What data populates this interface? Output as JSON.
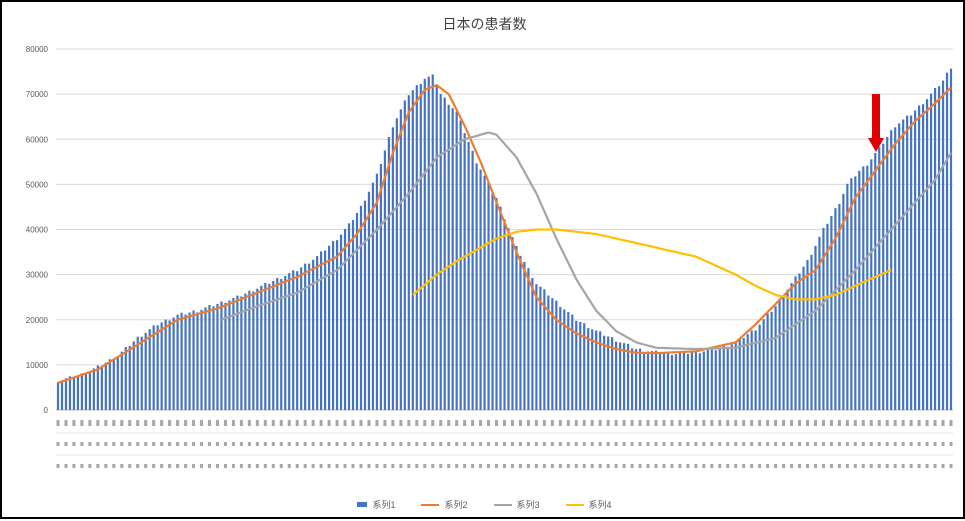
{
  "chart_data": {
    "type": "bar",
    "title": "日本の患者数",
    "ylim": [
      0,
      80000
    ],
    "yticks": [
      0,
      10000,
      20000,
      30000,
      40000,
      50000,
      60000,
      70000,
      80000
    ],
    "grid": true,
    "legend_position": "bottom",
    "x_count": 197,
    "series": [
      {
        "name": "系列1",
        "type": "bar",
        "color": "#4472C4",
        "anchors": [
          [
            0,
            6500
          ],
          [
            5,
            7500
          ],
          [
            10,
            9500
          ],
          [
            15,
            12000
          ],
          [
            20,
            16000
          ],
          [
            25,
            19000
          ],
          [
            30,
            21000
          ],
          [
            35,
            22000
          ],
          [
            40,
            23500
          ],
          [
            45,
            25000
          ],
          [
            50,
            27000
          ],
          [
            55,
            29000
          ],
          [
            60,
            31000
          ],
          [
            65,
            34000
          ],
          [
            70,
            38000
          ],
          [
            73,
            41000
          ],
          [
            76,
            45000
          ],
          [
            80,
            52000
          ],
          [
            84,
            63000
          ],
          [
            88,
            70000
          ],
          [
            92,
            73500
          ],
          [
            94,
            74000
          ],
          [
            96,
            70000
          ],
          [
            100,
            66000
          ],
          [
            105,
            55000
          ],
          [
            110,
            47000
          ],
          [
            115,
            36000
          ],
          [
            120,
            28000
          ],
          [
            125,
            24000
          ],
          [
            130,
            20000
          ],
          [
            135,
            17500
          ],
          [
            140,
            15500
          ],
          [
            145,
            13500
          ],
          [
            150,
            12800
          ],
          [
            155,
            12500
          ],
          [
            160,
            12800
          ],
          [
            165,
            13500
          ],
          [
            170,
            15000
          ],
          [
            175,
            18000
          ],
          [
            180,
            23000
          ],
          [
            184,
            28000
          ],
          [
            188,
            33000
          ],
          [
            192,
            40000
          ],
          [
            196,
            46000
          ],
          [
            198,
            50000
          ],
          [
            201,
            53000
          ],
          [
            203,
            54500
          ],
          [
            206,
            58000
          ],
          [
            210,
            63000
          ],
          [
            214,
            65500
          ],
          [
            218,
            69000
          ],
          [
            222,
            73000
          ],
          [
            224,
            76000
          ]
        ]
      },
      {
        "name": "系列2",
        "type": "line",
        "color": "#ED7D31",
        "anchors": [
          [
            0,
            6000
          ],
          [
            10,
            9000
          ],
          [
            20,
            14500
          ],
          [
            30,
            20000
          ],
          [
            40,
            22500
          ],
          [
            50,
            26000
          ],
          [
            60,
            29500
          ],
          [
            70,
            34000
          ],
          [
            75,
            39000
          ],
          [
            80,
            46000
          ],
          [
            84,
            57000
          ],
          [
            88,
            66000
          ],
          [
            92,
            71000
          ],
          [
            95,
            72000
          ],
          [
            98,
            70000
          ],
          [
            102,
            63000
          ],
          [
            106,
            55000
          ],
          [
            110,
            46000
          ],
          [
            115,
            35000
          ],
          [
            120,
            25000
          ],
          [
            125,
            20000
          ],
          [
            130,
            17000
          ],
          [
            135,
            15000
          ],
          [
            140,
            13500
          ],
          [
            145,
            12700
          ],
          [
            150,
            12600
          ],
          [
            160,
            13000
          ],
          [
            170,
            15000
          ],
          [
            175,
            19000
          ],
          [
            180,
            23500
          ],
          [
            185,
            28000
          ],
          [
            190,
            31000
          ],
          [
            195,
            38000
          ],
          [
            200,
            47000
          ],
          [
            205,
            53000
          ],
          [
            210,
            59000
          ],
          [
            215,
            64000
          ],
          [
            220,
            68000
          ],
          [
            224,
            71500
          ]
        ]
      },
      {
        "name": "系列3",
        "type": "line",
        "color": "#A5A5A5",
        "anchors": [
          [
            41,
            20000
          ],
          [
            50,
            23000
          ],
          [
            60,
            26000
          ],
          [
            70,
            31000
          ],
          [
            80,
            40000
          ],
          [
            88,
            48000
          ],
          [
            95,
            56000
          ],
          [
            102,
            60000
          ],
          [
            108,
            61500
          ],
          [
            110,
            61000
          ],
          [
            115,
            56000
          ],
          [
            120,
            48000
          ],
          [
            125,
            38000
          ],
          [
            130,
            29000
          ],
          [
            135,
            22000
          ],
          [
            140,
            17500
          ],
          [
            145,
            15000
          ],
          [
            150,
            13800
          ],
          [
            160,
            13500
          ],
          [
            170,
            13800
          ],
          [
            180,
            16000
          ],
          [
            190,
            22000
          ],
          [
            200,
            31000
          ],
          [
            210,
            41000
          ],
          [
            220,
            51000
          ],
          [
            224,
            57000
          ]
        ]
      },
      {
        "name": "系列4",
        "type": "line",
        "color": "#FFC000",
        "anchors": [
          [
            89,
            25500
          ],
          [
            95,
            30000
          ],
          [
            100,
            33000
          ],
          [
            105,
            35500
          ],
          [
            110,
            38000
          ],
          [
            115,
            39500
          ],
          [
            120,
            40000
          ],
          [
            125,
            40000
          ],
          [
            130,
            39500
          ],
          [
            135,
            39000
          ],
          [
            140,
            38000
          ],
          [
            145,
            37000
          ],
          [
            150,
            36000
          ],
          [
            155,
            35000
          ],
          [
            160,
            34000
          ],
          [
            165,
            32000
          ],
          [
            170,
            30000
          ],
          [
            175,
            27500
          ],
          [
            180,
            25500
          ],
          [
            185,
            24500
          ],
          [
            190,
            24500
          ],
          [
            195,
            25500
          ],
          [
            200,
            27500
          ],
          [
            205,
            29500
          ],
          [
            209,
            31000
          ]
        ]
      }
    ]
  }
}
